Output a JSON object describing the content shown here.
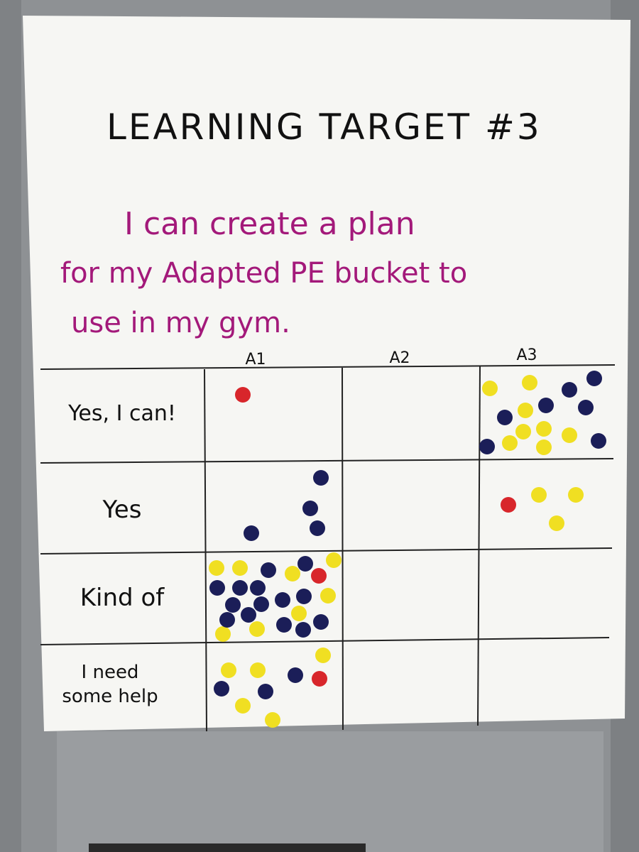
{
  "poster": {
    "title": "LEARNING TARGET #3",
    "goal_lines": [
      "I can create a plan",
      "for my Adapted PE bucket to",
      "use in my gym."
    ],
    "columns": [
      "A1",
      "A2",
      "A3"
    ],
    "rows": [
      "Yes, I can!",
      "Yes",
      "Kind of",
      "I need some help"
    ]
  }
}
